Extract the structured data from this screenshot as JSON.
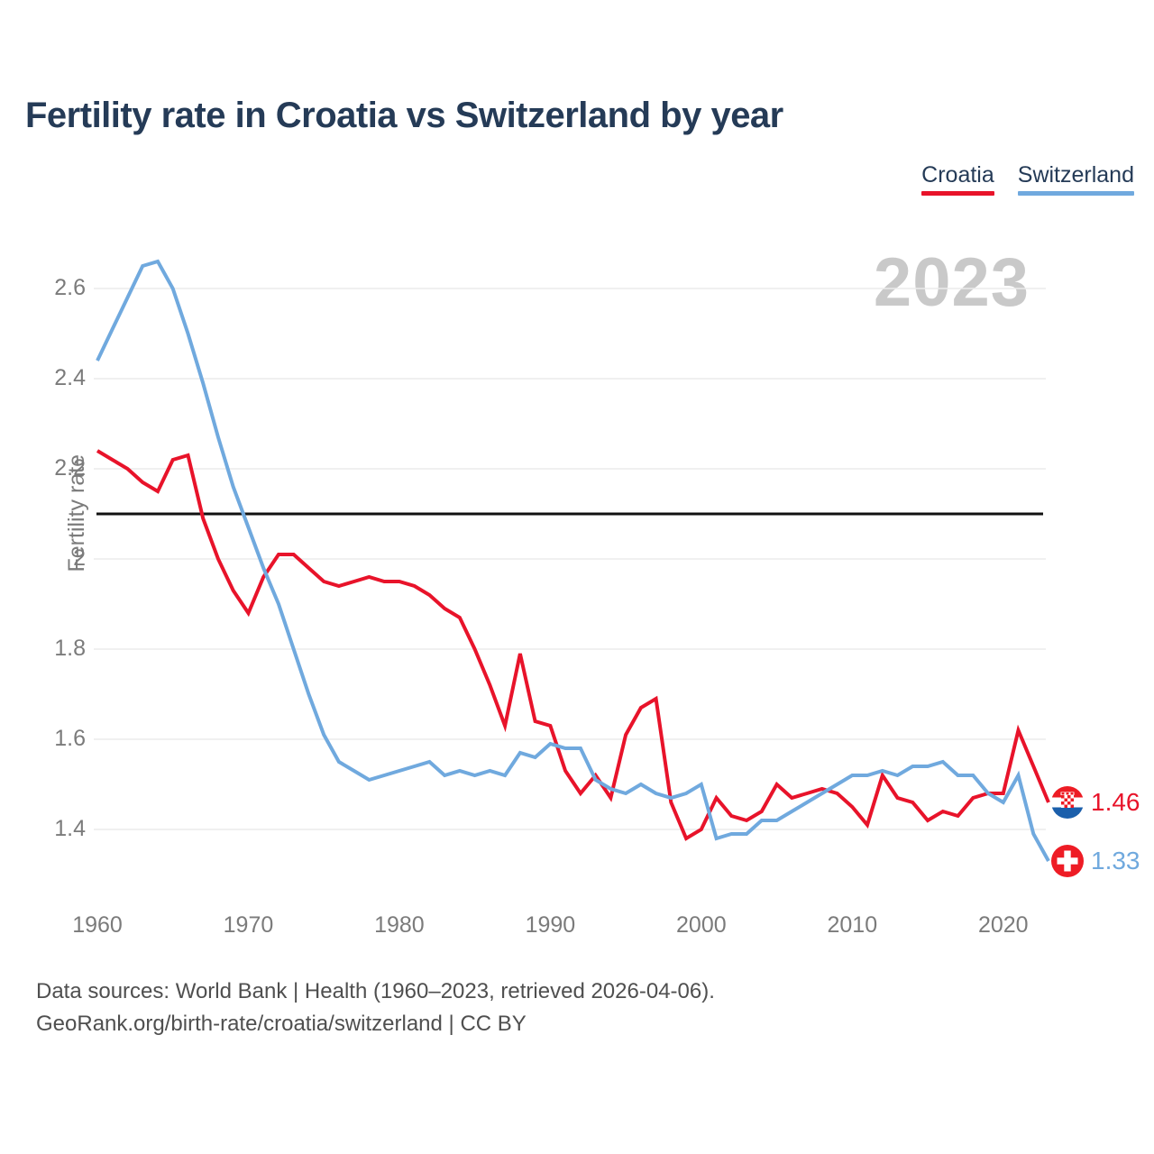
{
  "title": "Fertility rate in Croatia vs Switzerland by year",
  "watermark": "2023",
  "y_axis_title": "Fertility rate",
  "legend": {
    "items": [
      {
        "label": "Croatia",
        "color": "#e8132a"
      },
      {
        "label": "Switzerland",
        "color": "#70a9de"
      }
    ]
  },
  "end_labels": [
    {
      "series": "Croatia",
      "value": "1.46",
      "flag": "croatia-flag"
    },
    {
      "series": "Switzerland",
      "value": "1.33",
      "flag": "switzerland-flag"
    }
  ],
  "footer": {
    "line1": "Data sources: World Bank | Health (1960–2023, retrieved 2026-04-06).",
    "line2": "GeoRank.org/birth-rate/croatia/switzerland | CC BY"
  },
  "chart_data": {
    "type": "line",
    "title": "Fertility rate in Croatia vs Switzerland by year",
    "xlabel": "",
    "ylabel": "Fertility rate",
    "x": [
      1960,
      1961,
      1962,
      1963,
      1964,
      1965,
      1966,
      1967,
      1968,
      1969,
      1970,
      1971,
      1972,
      1973,
      1974,
      1975,
      1976,
      1977,
      1978,
      1979,
      1980,
      1981,
      1982,
      1983,
      1984,
      1985,
      1986,
      1987,
      1988,
      1989,
      1990,
      1991,
      1992,
      1993,
      1994,
      1995,
      1996,
      1997,
      1998,
      1999,
      2000,
      2001,
      2002,
      2003,
      2004,
      2005,
      2006,
      2007,
      2008,
      2009,
      2010,
      2011,
      2012,
      2013,
      2014,
      2015,
      2016,
      2017,
      2018,
      2019,
      2020,
      2021,
      2022,
      2023
    ],
    "series": [
      {
        "name": "Croatia",
        "color": "#e8132a",
        "values": [
          2.24,
          2.22,
          2.2,
          2.17,
          2.15,
          2.22,
          2.23,
          2.09,
          2.0,
          1.93,
          1.88,
          1.96,
          2.01,
          2.01,
          1.98,
          1.95,
          1.94,
          1.95,
          1.96,
          1.95,
          1.95,
          1.94,
          1.92,
          1.89,
          1.87,
          1.8,
          1.72,
          1.63,
          1.79,
          1.64,
          1.63,
          1.53,
          1.48,
          1.52,
          1.47,
          1.61,
          1.67,
          1.69,
          1.46,
          1.38,
          1.4,
          1.47,
          1.43,
          1.42,
          1.44,
          1.5,
          1.47,
          1.48,
          1.49,
          1.48,
          1.45,
          1.41,
          1.52,
          1.47,
          1.46,
          1.42,
          1.44,
          1.43,
          1.47,
          1.48,
          1.48,
          1.62,
          1.54,
          1.46
        ]
      },
      {
        "name": "Switzerland",
        "color": "#70a9de",
        "values": [
          2.44,
          2.51,
          2.58,
          2.65,
          2.66,
          2.6,
          2.5,
          2.39,
          2.27,
          2.16,
          2.07,
          1.98,
          1.9,
          1.8,
          1.7,
          1.61,
          1.55,
          1.53,
          1.51,
          1.52,
          1.53,
          1.54,
          1.55,
          1.52,
          1.53,
          1.52,
          1.53,
          1.52,
          1.57,
          1.56,
          1.59,
          1.58,
          1.58,
          1.51,
          1.49,
          1.48,
          1.5,
          1.48,
          1.47,
          1.48,
          1.5,
          1.38,
          1.39,
          1.39,
          1.42,
          1.42,
          1.44,
          1.46,
          1.48,
          1.5,
          1.52,
          1.52,
          1.53,
          1.52,
          1.54,
          1.54,
          1.55,
          1.52,
          1.52,
          1.48,
          1.46,
          1.52,
          1.39,
          1.33
        ]
      }
    ],
    "ylim": [
      1.3,
      2.7
    ],
    "yticks": [
      2.6,
      2.4,
      2.2,
      2,
      1.8,
      1.6,
      1.4
    ],
    "xticks": [
      1960,
      1970,
      1980,
      1990,
      2000,
      2010,
      2020
    ],
    "reference_line": {
      "value": 2.1,
      "color": "#111111"
    },
    "grid": "horizontal",
    "legend_position": "top-right",
    "end_value_labels": [
      1.46,
      1.33
    ]
  }
}
